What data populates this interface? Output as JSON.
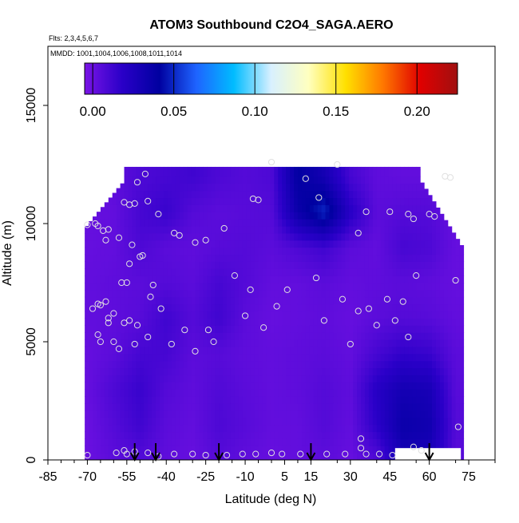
{
  "chart_data": {
    "type": "heatmap",
    "title": "ATOM3 Southbound C2O4_SAGA.AERO",
    "flights_note": "Flts: 2,3,4,5,6,7",
    "dates_note": "MMDD: 1001,1004,1006,1008,1011,1014",
    "xlabel": "Latitude (deg N)",
    "ylabel": "Altitude (m)",
    "xlim": [
      -85,
      85
    ],
    "ylim": [
      0,
      17500
    ],
    "x_ticks": [
      "-85",
      "-70",
      "-55",
      "-40",
      "-25",
      "-10",
      "5",
      "15",
      "30",
      "45",
      "60",
      "75"
    ],
    "y_ticks": [
      "0",
      "5000",
      "10000",
      "15000"
    ],
    "colorbar": {
      "range": [
        -0.005,
        0.225
      ],
      "ticks": [
        "0.00",
        "0.05",
        "0.10",
        "0.15",
        "0.20"
      ],
      "colors": [
        "#7a14e6",
        "#2a00c8",
        "#0000a0",
        "#1e64ff",
        "#00bcff",
        "#d8f0ff",
        "#ffffc0",
        "#ffe000",
        "#ff7800",
        "#e00000",
        "#a01010"
      ]
    },
    "field": {
      "lat": [
        -70,
        -60,
        -50,
        -40,
        -30,
        -20,
        -10,
        0,
        10,
        20,
        30,
        40,
        50,
        60,
        70
      ],
      "alt": [
        250,
        1500,
        3000,
        4500,
        6000,
        7500,
        9000,
        10500,
        12000
      ],
      "values": [
        [
          0.0,
          0.004,
          0.007,
          0.003,
          0.001,
          0.006,
          0.003,
          0.001,
          0.002,
          0.004,
          0.001,
          0.008,
          0.03,
          0.028,
          0.005
        ],
        [
          0.0,
          0.006,
          0.012,
          0.004,
          0.002,
          0.008,
          0.005,
          0.002,
          0.002,
          0.006,
          0.002,
          0.018,
          0.035,
          0.032,
          0.006
        ],
        [
          0.001,
          0.008,
          0.014,
          0.006,
          0.003,
          0.007,
          0.004,
          0.002,
          0.003,
          0.006,
          0.003,
          0.02,
          0.03,
          0.028,
          0.005
        ],
        [
          0.001,
          0.004,
          0.01,
          0.01,
          0.004,
          0.005,
          0.003,
          0.002,
          0.003,
          0.004,
          0.002,
          0.01,
          0.016,
          0.014,
          0.004
        ],
        [
          0.002,
          0.003,
          0.005,
          0.012,
          0.006,
          0.012,
          0.004,
          0.001,
          0.002,
          0.003,
          0.001,
          0.004,
          0.006,
          0.005,
          0.002
        ],
        [
          0.002,
          0.003,
          0.004,
          0.006,
          0.004,
          0.01,
          0.006,
          0.002,
          0.002,
          0.004,
          0.002,
          0.003,
          0.004,
          0.003,
          0.001
        ],
        [
          0.001,
          0.002,
          0.008,
          0.004,
          0.003,
          0.005,
          0.006,
          0.004,
          0.008,
          0.012,
          0.004,
          0.002,
          0.01,
          0.008,
          0.001
        ],
        [
          0.001,
          0.002,
          0.01,
          0.014,
          0.006,
          0.004,
          0.005,
          0.006,
          0.035,
          0.05,
          0.02,
          0.004,
          0.006,
          0.006,
          0.001
        ],
        [
          0.001,
          0.003,
          0.008,
          0.01,
          0.012,
          0.008,
          0.006,
          0.008,
          0.04,
          0.03,
          0.01,
          0.003,
          0.002,
          0.002,
          0.001
        ]
      ]
    },
    "samples": [
      [
        -70,
        9950
      ],
      [
        -67,
        10000
      ],
      [
        -66,
        9900
      ],
      [
        -64,
        9700
      ],
      [
        -63,
        9300
      ],
      [
        -62,
        9750
      ],
      [
        -58,
        9400
      ],
      [
        -56,
        10900
      ],
      [
        -54,
        10800
      ],
      [
        -52,
        10850
      ],
      [
        -51,
        11750
      ],
      [
        -48,
        12100
      ],
      [
        -47,
        10950
      ],
      [
        -43,
        10400
      ],
      [
        -37,
        9600
      ],
      [
        -35,
        9500
      ],
      [
        -29,
        9200
      ],
      [
        -25,
        9300
      ],
      [
        -18,
        9800
      ],
      [
        -68,
        6400
      ],
      [
        -66,
        6600
      ],
      [
        -65,
        6550
      ],
      [
        -63,
        6700
      ],
      [
        -62,
        6000
      ],
      [
        -60,
        6200
      ],
      [
        -57,
        7500
      ],
      [
        -55,
        7500
      ],
      [
        -54,
        8300
      ],
      [
        -53,
        9100
      ],
      [
        -50,
        8600
      ],
      [
        -49,
        8650
      ],
      [
        -46,
        6900
      ],
      [
        -45,
        7400
      ],
      [
        -42,
        6400
      ],
      [
        -14,
        7800
      ],
      [
        -10,
        6100
      ],
      [
        -8,
        7200
      ],
      [
        -3,
        5600
      ],
      [
        2,
        6500
      ],
      [
        6,
        7200
      ],
      [
        17,
        7700
      ],
      [
        20,
        5900
      ],
      [
        27,
        6800
      ],
      [
        30,
        4900
      ],
      [
        33,
        6300
      ],
      [
        37,
        6400
      ],
      [
        40,
        5700
      ],
      [
        44,
        6800
      ],
      [
        47,
        5900
      ],
      [
        50,
        6700
      ],
      [
        52,
        5200
      ],
      [
        55,
        7800
      ],
      [
        60,
        10400
      ],
      [
        62,
        10300
      ],
      [
        66,
        12000
      ],
      [
        68,
        11950
      ],
      [
        -66,
        5300
      ],
      [
        -65,
        5000
      ],
      [
        -62,
        5800
      ],
      [
        -60,
        5000
      ],
      [
        -58,
        4700
      ],
      [
        -56,
        5800
      ],
      [
        -54,
        5900
      ],
      [
        -52,
        4900
      ],
      [
        -51,
        5700
      ],
      [
        -47,
        5200
      ],
      [
        -38,
        4900
      ],
      [
        -33,
        5500
      ],
      [
        -29,
        4600
      ],
      [
        -24,
        5500
      ],
      [
        -22,
        5000
      ],
      [
        -7,
        11050
      ],
      [
        -5,
        11000
      ],
      [
        0,
        12600
      ],
      [
        13,
        11900
      ],
      [
        18,
        11100
      ],
      [
        25,
        12500
      ],
      [
        33,
        9600
      ],
      [
        36,
        10500
      ],
      [
        45,
        10500
      ],
      [
        52,
        10400
      ],
      [
        54,
        10200
      ],
      [
        70,
        7600
      ],
      [
        71,
        1400
      ],
      [
        -70,
        200
      ],
      [
        -59,
        300
      ],
      [
        -56,
        400
      ],
      [
        -55,
        250
      ],
      [
        -52,
        350
      ],
      [
        -47,
        300
      ],
      [
        -43,
        150
      ],
      [
        -37,
        250
      ],
      [
        -30,
        250
      ],
      [
        -25,
        200
      ],
      [
        -17,
        200
      ],
      [
        -11,
        250
      ],
      [
        -6,
        250
      ],
      [
        0,
        300
      ],
      [
        4,
        250
      ],
      [
        11,
        250
      ],
      [
        21,
        250
      ],
      [
        28,
        250
      ],
      [
        34,
        900
      ],
      [
        34,
        500
      ],
      [
        36,
        250
      ],
      [
        41,
        250
      ],
      [
        46,
        200
      ],
      [
        54,
        550
      ],
      [
        57,
        400
      ]
    ],
    "flight_markers_lat": [
      -52,
      -44,
      -20,
      15,
      60
    ]
  }
}
